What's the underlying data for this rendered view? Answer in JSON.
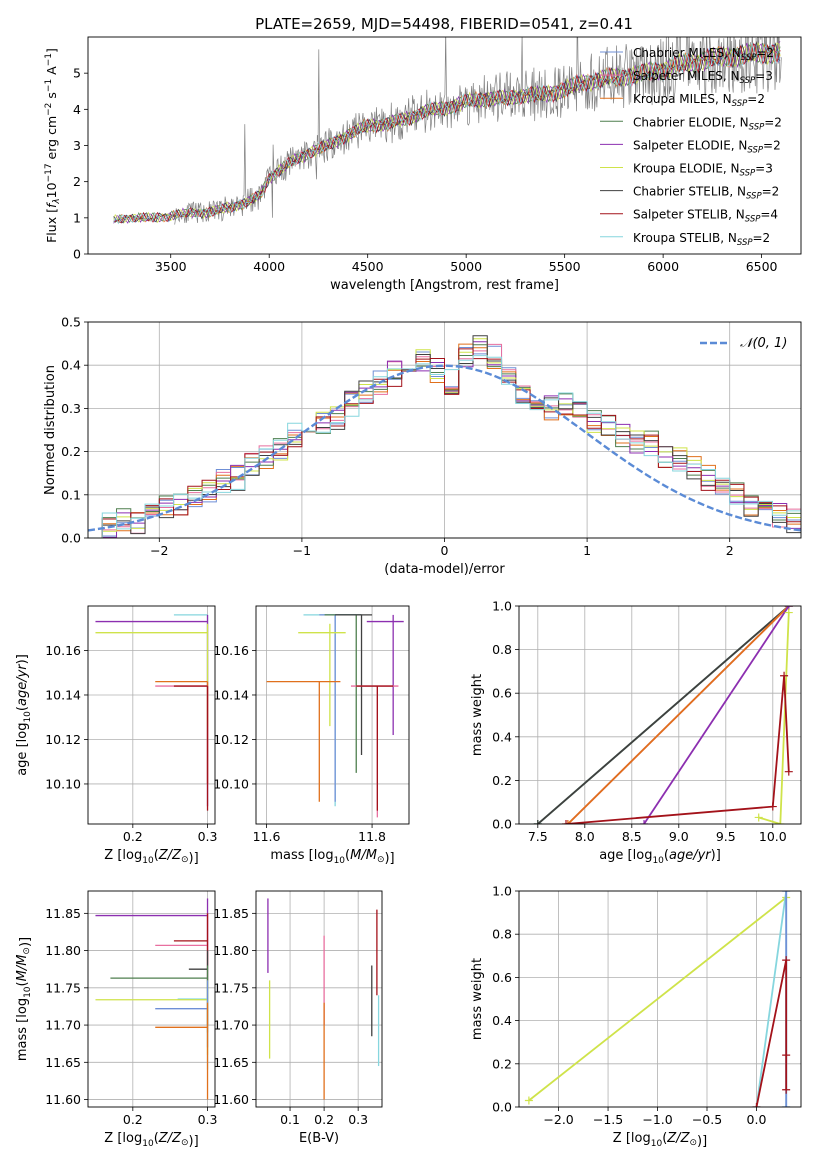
{
  "figure": {
    "title": "PLATE=2659, MJD=54498, FIBERID=0541, z=0.41"
  },
  "colors": {
    "Chabrier MILES": "#6f8fd6",
    "Salpeter MILES": "#e86f9f",
    "Kroupa MILES": "#e0701c",
    "Chabrier ELODIE": "#4f7f4f",
    "Salpeter ELODIE": "#8c2fb0",
    "Kroupa ELODIE": "#cfe34a",
    "Chabrier STELIB": "#404040",
    "Salpeter STELIB": "#a3121a",
    "Kroupa STELIB": "#86d6de",
    "data": "#808080",
    "gaussian": "#5b8bd6"
  },
  "chart_data": [
    {
      "id": "spectrum",
      "type": "line",
      "title": "PLATE=2659, MJD=54498, FIBERID=0541, z=0.41",
      "xlabel": "wavelength [Angstrom, rest frame]",
      "ylabel": "Flux [f_λ 10^-17 erg cm^-2 s^-1 A^-1]",
      "xlim": [
        3080,
        6700
      ],
      "ylim": [
        0,
        6
      ],
      "xticks": [
        3500,
        4000,
        4500,
        5000,
        5500,
        6000,
        6500
      ],
      "yticks": [
        0,
        1,
        2,
        3,
        4,
        5
      ],
      "legend_position": "right",
      "legend": [
        {
          "label": "Chabrier MILES, N",
          "sub": "SSP",
          "suffix": "=2",
          "key": "Chabrier MILES"
        },
        {
          "label": "Salpeter MILES, N",
          "sub": "SSP",
          "suffix": "=3",
          "key": "Salpeter MILES"
        },
        {
          "label": "Kroupa MILES, N",
          "sub": "SSP",
          "suffix": "=2",
          "key": "Kroupa MILES"
        },
        {
          "label": "Chabrier ELODIE, N",
          "sub": "SSP",
          "suffix": "=2",
          "key": "Chabrier ELODIE"
        },
        {
          "label": "Salpeter ELODIE, N",
          "sub": "SSP",
          "suffix": "=2",
          "key": "Salpeter ELODIE"
        },
        {
          "label": "Kroupa ELODIE, N",
          "sub": "SSP",
          "suffix": "=3",
          "key": "Kroupa ELODIE"
        },
        {
          "label": "Chabrier STELIB, N",
          "sub": "SSP",
          "suffix": "=2",
          "key": "Chabrier STELIB"
        },
        {
          "label": "Salpeter STELIB, N",
          "sub": "SSP",
          "suffix": "=4",
          "key": "Salpeter STELIB"
        },
        {
          "label": "Kroupa STELIB, N",
          "sub": "SSP",
          "suffix": "=2",
          "key": "Kroupa STELIB"
        }
      ],
      "continuum": {
        "x": [
          3210,
          3300,
          3400,
          3500,
          3600,
          3700,
          3800,
          3900,
          3950,
          4000,
          4100,
          4200,
          4300,
          4400,
          4500,
          4600,
          4700,
          4800,
          4900,
          5000,
          5100,
          5200,
          5300,
          5400,
          5500,
          5600,
          5700,
          5800,
          5900,
          6000,
          6100,
          6200,
          6300,
          6400,
          6500,
          6600
        ],
        "y": [
          0.95,
          1.0,
          1.0,
          1.05,
          1.15,
          1.15,
          1.3,
          1.45,
          1.6,
          2.1,
          2.5,
          2.8,
          3.0,
          3.3,
          3.55,
          3.6,
          3.75,
          3.95,
          4.05,
          4.2,
          4.3,
          4.3,
          4.4,
          4.4,
          4.55,
          4.75,
          4.85,
          4.9,
          5.0,
          5.1,
          5.25,
          5.35,
          5.45,
          5.5,
          5.55,
          5.6
        ]
      },
      "data_start": 3520
    },
    {
      "id": "residuals",
      "type": "histogram",
      "xlabel": "(data-model)/error",
      "ylabel": "Normed distribution",
      "xlim": [
        -2.5,
        2.5
      ],
      "ylim": [
        0,
        0.5
      ],
      "xticks": [
        -2,
        -1,
        0,
        1,
        2
      ],
      "yticks": [
        0.0,
        0.1,
        0.2,
        0.3,
        0.4,
        0.5
      ],
      "legend_position": "top-right",
      "legend_label": "𝒩(0, 1)",
      "bin_edges": [
        -2.5,
        -2.4,
        -2.3,
        -2.2,
        -2.1,
        -2.0,
        -1.9,
        -1.8,
        -1.7,
        -1.6,
        -1.5,
        -1.4,
        -1.3,
        -1.2,
        -1.1,
        -1.0,
        -0.9,
        -0.8,
        -0.7,
        -0.6,
        -0.5,
        -0.4,
        -0.3,
        -0.2,
        -0.1,
        0.0,
        0.1,
        0.2,
        0.3,
        0.4,
        0.5,
        0.6,
        0.7,
        0.8,
        0.9,
        1.0,
        1.1,
        1.2,
        1.3,
        1.4,
        1.5,
        1.6,
        1.7,
        1.8,
        1.9,
        2.0,
        2.1,
        2.2,
        2.3,
        2.4,
        2.5
      ],
      "base_counts": [
        0.03,
        0.03,
        0.04,
        0.04,
        0.05,
        0.07,
        0.08,
        0.1,
        0.11,
        0.13,
        0.14,
        0.17,
        0.19,
        0.21,
        0.24,
        0.25,
        0.27,
        0.28,
        0.31,
        0.34,
        0.36,
        0.38,
        0.4,
        0.41,
        0.39,
        0.36,
        0.42,
        0.44,
        0.42,
        0.38,
        0.34,
        0.31,
        0.3,
        0.31,
        0.29,
        0.27,
        0.26,
        0.24,
        0.22,
        0.22,
        0.19,
        0.18,
        0.16,
        0.14,
        0.12,
        0.1,
        0.08,
        0.07,
        0.05,
        0.04
      ],
      "series_order": [
        "Chabrier MILES",
        "Salpeter MILES",
        "Kroupa MILES",
        "Chabrier ELODIE",
        "Salpeter ELODIE",
        "Kroupa ELODIE",
        "Chabrier STELIB",
        "Salpeter STELIB",
        "Kroupa STELIB"
      ]
    },
    {
      "id": "age-vs-Z",
      "type": "errorbar",
      "xlabel": "Z [log10(Z/Z⊙)]",
      "ylabel": "age  [log10(age/yr)]",
      "xlim": [
        0.14,
        0.31
      ],
      "ylim": [
        10.082,
        10.18
      ],
      "xticks": [
        0.2,
        0.3
      ],
      "yticks": [
        10.1,
        10.12,
        10.14,
        10.16
      ],
      "points": [
        {
          "key": "Kroupa STELIB",
          "x": 0.3,
          "y": 10.176,
          "xerr": [
            0.255,
            0.3
          ],
          "yerr": [
            10.1,
            10.176
          ]
        },
        {
          "key": "Salpeter ELODIE",
          "x": 0.3,
          "y": 10.173,
          "xerr": [
            0.15,
            0.3
          ],
          "yerr": [
            10.09,
            10.176
          ]
        },
        {
          "key": "Kroupa ELODIE",
          "x": 0.3,
          "y": 10.168,
          "xerr": [
            0.15,
            0.3
          ],
          "yerr": [
            10.126,
            10.172
          ]
        },
        {
          "key": "Kroupa MILES",
          "x": 0.3,
          "y": 10.146,
          "xerr": [
            0.23,
            0.3
          ],
          "yerr": [
            10.1,
            10.146
          ]
        },
        {
          "key": "Salpeter MILES",
          "x": 0.3,
          "y": 10.144,
          "xerr": [
            0.23,
            0.3
          ],
          "yerr": [
            10.1,
            10.144
          ]
        },
        {
          "key": "Salpeter STELIB",
          "x": 0.3,
          "y": 10.144,
          "xerr": [
            0.255,
            0.3
          ],
          "yerr": [
            10.088,
            10.144
          ]
        }
      ]
    },
    {
      "id": "age-vs-mass",
      "type": "errorbar",
      "xlabel": "mass [log10(M/M⊙)]",
      "ylabel": "",
      "xlim": [
        11.58,
        11.87
      ],
      "ylim": [
        10.082,
        10.18
      ],
      "xticks": [
        11.6,
        11.8
      ],
      "yticks": [
        10.1,
        10.12,
        10.14,
        10.16
      ],
      "points": [
        {
          "key": "Kroupa STELIB",
          "x": 11.73,
          "y": 10.176,
          "xerr": [
            11.67,
            11.77
          ],
          "yerr": [
            10.09,
            10.176
          ]
        },
        {
          "key": "Chabrier MILES",
          "x": 11.73,
          "y": 10.176,
          "xerr": [
            11.7,
            11.78
          ],
          "yerr": [
            10.092,
            10.176
          ]
        },
        {
          "key": "Chabrier ELODIE",
          "x": 11.77,
          "y": 10.176,
          "xerr": [
            11.71,
            11.78
          ],
          "yerr": [
            10.105,
            10.176
          ]
        },
        {
          "key": "Chabrier STELIB",
          "x": 11.78,
          "y": 10.176,
          "xerr": [
            11.73,
            11.8
          ],
          "yerr": [
            10.113,
            10.176
          ]
        },
        {
          "key": "Salpeter ELODIE",
          "x": 11.84,
          "y": 10.173,
          "xerr": [
            11.79,
            11.86
          ],
          "yerr": [
            10.122,
            10.176
          ]
        },
        {
          "key": "Kroupa ELODIE",
          "x": 11.72,
          "y": 10.168,
          "xerr": [
            11.66,
            11.75
          ],
          "yerr": [
            10.126,
            10.172
          ]
        },
        {
          "key": "Kroupa MILES",
          "x": 11.7,
          "y": 10.146,
          "xerr": [
            11.6,
            11.74
          ],
          "yerr": [
            10.092,
            10.146
          ]
        },
        {
          "key": "Salpeter MILES",
          "x": 11.81,
          "y": 10.144,
          "xerr": [
            11.76,
            11.85
          ],
          "yerr": [
            10.085,
            10.144
          ]
        },
        {
          "key": "Salpeter STELIB",
          "x": 11.81,
          "y": 10.144,
          "xerr": [
            11.77,
            11.84
          ],
          "yerr": [
            10.088,
            10.144
          ]
        }
      ]
    },
    {
      "id": "weight-vs-age",
      "type": "line",
      "xlabel": "age  [log10(age/yr)]",
      "ylabel": "mass weight",
      "xlim": [
        7.3,
        10.3
      ],
      "ylim": [
        0.0,
        1.0
      ],
      "xticks": [
        7.5,
        8.0,
        8.5,
        9.0,
        9.5,
        10.0
      ],
      "yticks": [
        0.0,
        0.2,
        0.4,
        0.6,
        0.8,
        1.0
      ],
      "series": [
        {
          "key": "Kroupa STELIB",
          "x": [
            7.5,
            10.17
          ],
          "y": [
            0.0,
            1.0
          ]
        },
        {
          "key": "Chabrier ELODIE",
          "x": [
            7.5,
            10.17
          ],
          "y": [
            0.0,
            1.0
          ]
        },
        {
          "key": "Chabrier STELIB",
          "x": [
            7.5,
            10.17
          ],
          "y": [
            0.0,
            1.0
          ]
        },
        {
          "key": "Salpeter MILES",
          "x": [
            7.82,
            10.17
          ],
          "y": [
            0.0,
            1.0
          ]
        },
        {
          "key": "Kroupa MILES",
          "x": [
            7.82,
            10.17
          ],
          "y": [
            0.0,
            1.0
          ]
        },
        {
          "key": "Salpeter ELODIE",
          "x": [
            8.63,
            10.17
          ],
          "y": [
            0.0,
            1.0
          ]
        },
        {
          "key": "Kroupa ELODIE",
          "x": [
            9.85,
            10.08,
            10.17
          ],
          "y": [
            0.03,
            0.0,
            0.97
          ]
        },
        {
          "key": "Salpeter STELIB",
          "x": [
            7.8,
            10.0,
            10.12,
            10.17
          ],
          "y": [
            0.0,
            0.08,
            0.68,
            0.24
          ]
        }
      ]
    },
    {
      "id": "mass-vs-Z",
      "type": "errorbar",
      "xlabel": "Z [log10(Z/Z⊙)]",
      "ylabel": "mass [log10(M/M⊙)]",
      "xlim": [
        0.14,
        0.31
      ],
      "ylim": [
        11.59,
        11.88
      ],
      "xticks": [
        0.2,
        0.3
      ],
      "yticks": [
        11.6,
        11.65,
        11.7,
        11.75,
        11.8,
        11.85
      ],
      "points": [
        {
          "key": "Salpeter ELODIE",
          "x": 0.3,
          "y": 11.847,
          "xerr": [
            0.15,
            0.3
          ],
          "yerr": [
            11.8,
            11.87
          ]
        },
        {
          "key": "Salpeter MILES",
          "x": 0.3,
          "y": 11.807,
          "xerr": [
            0.23,
            0.3
          ],
          "yerr": [
            11.76,
            11.85
          ]
        },
        {
          "key": "Salpeter STELIB",
          "x": 0.3,
          "y": 11.813,
          "xerr": [
            0.255,
            0.3
          ],
          "yerr": [
            11.78,
            11.85
          ]
        },
        {
          "key": "Chabrier STELIB",
          "x": 0.3,
          "y": 11.775,
          "xerr": [
            0.275,
            0.3
          ],
          "yerr": [
            11.69,
            11.8
          ]
        },
        {
          "key": "Chabrier ELODIE",
          "x": 0.3,
          "y": 11.763,
          "xerr": [
            0.17,
            0.3
          ],
          "yerr": [
            11.7,
            11.78
          ]
        },
        {
          "key": "Kroupa STELIB",
          "x": 0.3,
          "y": 11.735,
          "xerr": [
            0.26,
            0.3
          ],
          "yerr": [
            11.64,
            11.75
          ]
        },
        {
          "key": "Kroupa ELODIE",
          "x": 0.3,
          "y": 11.734,
          "xerr": [
            0.15,
            0.3
          ],
          "yerr": [
            11.66,
            11.76
          ]
        },
        {
          "key": "Chabrier MILES",
          "x": 0.3,
          "y": 11.722,
          "xerr": [
            0.23,
            0.3
          ],
          "yerr": [
            11.67,
            11.76
          ]
        },
        {
          "key": "Kroupa MILES",
          "x": 0.3,
          "y": 11.697,
          "xerr": [
            0.23,
            0.3
          ],
          "yerr": [
            11.6,
            11.73
          ]
        }
      ]
    },
    {
      "id": "mass-vs-EBV",
      "type": "errorbar",
      "xlabel": "E(B-V)",
      "ylabel": "",
      "xlim": [
        0.0,
        0.37
      ],
      "ylim": [
        11.59,
        11.88
      ],
      "xticks": [
        0.1,
        0.2,
        0.3
      ],
      "yticks": [
        11.6,
        11.65,
        11.7,
        11.75,
        11.8,
        11.85
      ],
      "points": [
        {
          "key": "Salpeter ELODIE",
          "x": 0.035,
          "y": 11.82,
          "xerr": [
            0.035,
            0.035
          ],
          "yerr": [
            11.77,
            11.87
          ]
        },
        {
          "key": "Kroupa ELODIE",
          "x": 0.04,
          "y": 11.7,
          "xerr": [
            0.04,
            0.04
          ],
          "yerr": [
            11.655,
            11.76
          ]
        },
        {
          "key": "Salpeter MILES",
          "x": 0.2,
          "y": 11.76,
          "xerr": [
            0.2,
            0.2
          ],
          "yerr": [
            11.7,
            11.82
          ]
        },
        {
          "key": "Kroupa MILES",
          "x": 0.2,
          "y": 11.65,
          "xerr": [
            0.2,
            0.2
          ],
          "yerr": [
            11.6,
            11.73
          ]
        },
        {
          "key": "Chabrier STELIB",
          "x": 0.34,
          "y": 11.73,
          "xerr": [
            0.34,
            0.34
          ],
          "yerr": [
            11.685,
            11.78
          ]
        },
        {
          "key": "Salpeter STELIB",
          "x": 0.355,
          "y": 11.8,
          "xerr": [
            0.355,
            0.355
          ],
          "yerr": [
            11.74,
            11.855
          ]
        },
        {
          "key": "Kroupa STELIB",
          "x": 0.36,
          "y": 11.7,
          "xerr": [
            0.36,
            0.36
          ],
          "yerr": [
            11.645,
            11.74
          ]
        }
      ]
    },
    {
      "id": "weight-vs-Z",
      "type": "line",
      "xlabel": "Z [log10(Z/Z⊙)]",
      "ylabel": "mass weight",
      "xlim": [
        -2.4,
        0.45
      ],
      "ylim": [
        0.0,
        1.0
      ],
      "xticks": [
        -2.0,
        -1.5,
        -1.0,
        -0.5,
        0.0
      ],
      "yticks": [
        0.0,
        0.2,
        0.4,
        0.6,
        0.8,
        1.0
      ],
      "series": [
        {
          "key": "Kroupa ELODIE",
          "x": [
            -2.3,
            0.3
          ],
          "y": [
            0.03,
            0.97
          ]
        },
        {
          "key": "Kroupa STELIB",
          "x": [
            0.0,
            0.3,
            0.3
          ],
          "y": [
            0.0,
            1.0,
            0.0
          ]
        },
        {
          "key": "Chabrier MILES",
          "x": [
            0.3,
            0.3
          ],
          "y": [
            0.0,
            1.0
          ]
        },
        {
          "key": "Salpeter STELIB",
          "x": [
            0.0,
            0.3,
            0.3,
            0.3
          ],
          "y": [
            0.0,
            0.68,
            0.24,
            0.08
          ]
        }
      ]
    }
  ]
}
